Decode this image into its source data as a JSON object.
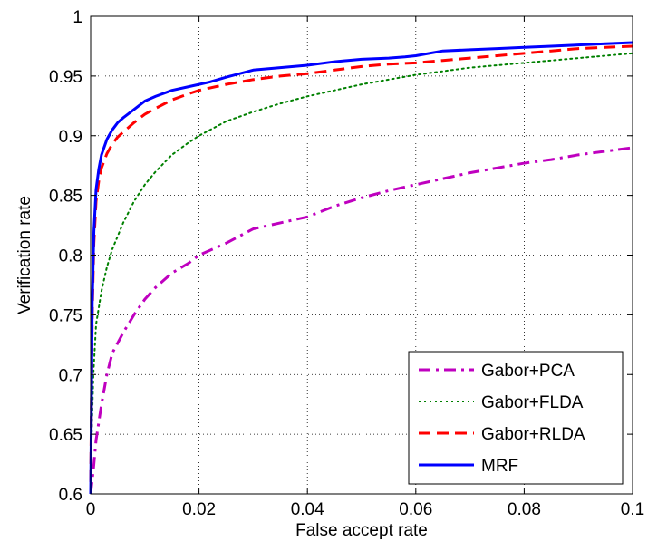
{
  "chart_data": {
    "type": "line",
    "xlabel": "False accept rate",
    "ylabel": "Verification rate",
    "xlim": [
      0,
      0.1
    ],
    "ylim": [
      0.6,
      1
    ],
    "xticks": [
      "0",
      "0.02",
      "0.04",
      "0.06",
      "0.08",
      "0.1"
    ],
    "yticks": [
      "0.6",
      "0.65",
      "0.7",
      "0.75",
      "0.8",
      "0.85",
      "0.9",
      "0.95",
      "1"
    ],
    "grid": true,
    "legend_position": "bottom-right",
    "series": [
      {
        "name": "Gabor+PCA",
        "color": "#bf00bf",
        "style": "dashdot",
        "x": [
          0,
          0.0005,
          0.001,
          0.002,
          0.003,
          0.004,
          0.006,
          0.008,
          0.01,
          0.012,
          0.015,
          0.018,
          0.02,
          0.025,
          0.03,
          0.035,
          0.04,
          0.045,
          0.05,
          0.055,
          0.06,
          0.065,
          0.07,
          0.075,
          0.08,
          0.085,
          0.09,
          0.095,
          0.1
        ],
        "y": [
          0.6,
          0.62,
          0.645,
          0.675,
          0.7,
          0.718,
          0.735,
          0.75,
          0.763,
          0.773,
          0.785,
          0.793,
          0.8,
          0.81,
          0.822,
          0.827,
          0.832,
          0.841,
          0.848,
          0.854,
          0.859,
          0.864,
          0.869,
          0.873,
          0.877,
          0.88,
          0.884,
          0.887,
          0.89
        ]
      },
      {
        "name": "Gabor+FLDA",
        "color": "#008000",
        "style": "dotted",
        "x": [
          0,
          0.0005,
          0.001,
          0.002,
          0.003,
          0.004,
          0.006,
          0.008,
          0.01,
          0.012,
          0.015,
          0.018,
          0.02,
          0.025,
          0.03,
          0.035,
          0.04,
          0.045,
          0.05,
          0.055,
          0.06,
          0.065,
          0.07,
          0.075,
          0.08,
          0.085,
          0.09,
          0.095,
          0.1
        ],
        "y": [
          0.62,
          0.7,
          0.742,
          0.77,
          0.79,
          0.805,
          0.827,
          0.845,
          0.859,
          0.87,
          0.884,
          0.894,
          0.9,
          0.912,
          0.92,
          0.927,
          0.933,
          0.938,
          0.943,
          0.947,
          0.951,
          0.954,
          0.957,
          0.959,
          0.961,
          0.963,
          0.965,
          0.967,
          0.969
        ]
      },
      {
        "name": "Gabor+RLDA",
        "color": "#ff0000",
        "style": "dashed",
        "x": [
          0,
          0.0003,
          0.0006,
          0.001,
          0.0015,
          0.002,
          0.003,
          0.004,
          0.005,
          0.006,
          0.008,
          0.01,
          0.012,
          0.015,
          0.018,
          0.02,
          0.025,
          0.03,
          0.035,
          0.04,
          0.045,
          0.05,
          0.055,
          0.06,
          0.065,
          0.07,
          0.075,
          0.08,
          0.085,
          0.09,
          0.095,
          0.1
        ],
        "y": [
          0.61,
          0.75,
          0.81,
          0.845,
          0.862,
          0.873,
          0.885,
          0.893,
          0.899,
          0.903,
          0.911,
          0.918,
          0.923,
          0.93,
          0.935,
          0.938,
          0.943,
          0.947,
          0.95,
          0.952,
          0.955,
          0.958,
          0.96,
          0.961,
          0.963,
          0.965,
          0.967,
          0.969,
          0.971,
          0.973,
          0.974,
          0.975
        ]
      },
      {
        "name": "MRF",
        "color": "#0000ff",
        "style": "solid",
        "x": [
          0,
          0.0003,
          0.0006,
          0.001,
          0.0015,
          0.002,
          0.003,
          0.004,
          0.005,
          0.006,
          0.008,
          0.01,
          0.012,
          0.015,
          0.018,
          0.02,
          0.022,
          0.025,
          0.03,
          0.035,
          0.04,
          0.045,
          0.05,
          0.055,
          0.058,
          0.06,
          0.065,
          0.07,
          0.075,
          0.08,
          0.085,
          0.09,
          0.095,
          0.1
        ],
        "y": [
          0.6,
          0.76,
          0.82,
          0.855,
          0.872,
          0.884,
          0.897,
          0.905,
          0.911,
          0.915,
          0.922,
          0.929,
          0.933,
          0.938,
          0.941,
          0.943,
          0.945,
          0.949,
          0.955,
          0.957,
          0.959,
          0.962,
          0.964,
          0.965,
          0.966,
          0.967,
          0.971,
          0.972,
          0.973,
          0.974,
          0.975,
          0.976,
          0.977,
          0.978
        ]
      }
    ]
  }
}
